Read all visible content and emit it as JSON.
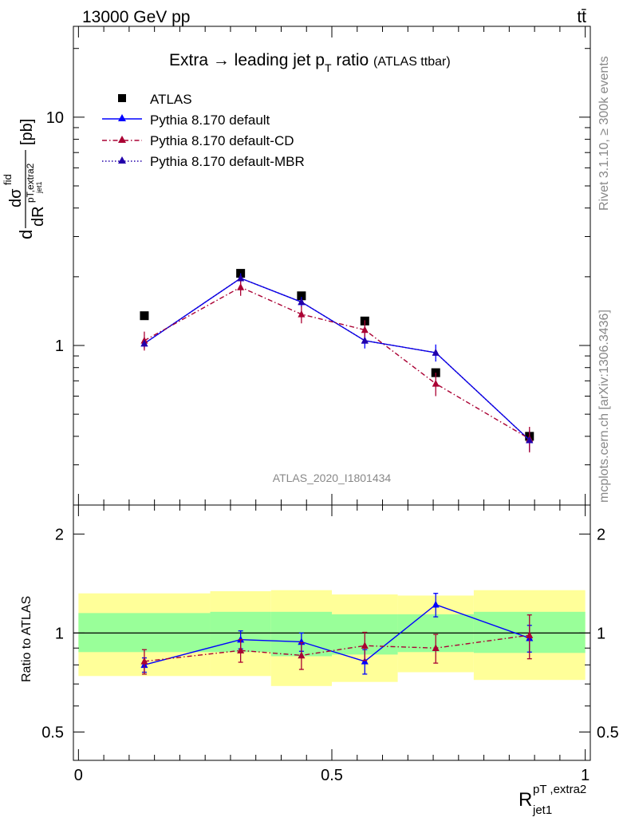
{
  "header": {
    "energy_label": "13000 GeV pp",
    "process_label": "tt̄",
    "rivet_label": "Rivet 3.1.10, ≥ 300k events",
    "mcplots_label": "mcplots.cern.ch [arXiv:1306.3436]",
    "analysis_label": "ATLAS_2020_I1801434"
  },
  "colors": {
    "atlas": "#000000",
    "default": "#0000ff",
    "default_cd": "#aa0033",
    "default_mbr": "#2200aa",
    "band_inner": "#99ff99",
    "band_outer": "#ffff99"
  },
  "chart_data": [
    {
      "type": "line",
      "panel": "main",
      "title": "Extra → leading jet pT ratio (ATLAS ttbar)",
      "title_parts": {
        "main": "Extra → leading jet p",
        "sub": "T",
        "rest": " ratio",
        "small": "(ATLAS ttbar)"
      },
      "ylabel": "dσ^fid / dR^{pT,extra2}_{jet1} [pb]",
      "ylabel_parts": {
        "d1": "d",
        "sigma": "dσ",
        "fid": "fid",
        "den": "dR",
        "sup": "pT,extra2",
        "sub": "jet1",
        "unit": "[pb]"
      },
      "y_scale": "log",
      "ylim": [
        0.2,
        25
      ],
      "xlim": [
        -0.01,
        1.01
      ],
      "y_ticks": [
        1,
        10
      ],
      "y_tick_labels": [
        "1",
        "10"
      ],
      "legend_position": "top-left",
      "series": [
        {
          "name": "ATLAS",
          "style": "data",
          "x": [
            0.13,
            0.32,
            0.44,
            0.565,
            0.705,
            0.89
          ],
          "y": [
            1.35,
            2.07,
            1.65,
            1.28,
            0.76,
            0.4
          ]
        },
        {
          "name": "Pythia 8.170 default",
          "style": "solid",
          "x": [
            0.13,
            0.32,
            0.44,
            0.565,
            0.705,
            0.89
          ],
          "y": [
            1.02,
            1.97,
            1.55,
            1.05,
            0.93,
            0.385
          ],
          "err": [
            0.05,
            0.1,
            0.08,
            0.08,
            0.08,
            0.04
          ]
        },
        {
          "name": "Pythia 8.170 default-CD",
          "style": "dashdot",
          "x": [
            0.13,
            0.32,
            0.44,
            0.565,
            0.705,
            0.89
          ],
          "y": [
            1.05,
            1.8,
            1.37,
            1.17,
            0.68,
            0.39
          ],
          "err": [
            0.1,
            0.15,
            0.12,
            0.12,
            0.08,
            0.05
          ]
        },
        {
          "name": "Pythia 8.170 default-MBR",
          "style": "dotted",
          "x": [
            0.13,
            0.32,
            0.44,
            0.565,
            0.705,
            0.89
          ],
          "y": [
            1.02,
            1.97,
            1.55,
            1.05,
            0.93,
            0.385
          ]
        }
      ]
    },
    {
      "type": "line",
      "panel": "ratio",
      "ylabel": "Ratio to ATLAS",
      "xlabel": "R^{pT,extra2}_{jet1}",
      "xlabel_parts": {
        "main": "R",
        "sup": "pT ,extra2",
        "sub": "jet1"
      },
      "y_scale": "log",
      "ylim": [
        0.41,
        2.45
      ],
      "xlim": [
        -0.01,
        1.01
      ],
      "x_ticks": [
        0,
        0.5,
        1
      ],
      "x_tick_labels": [
        "0",
        "0.5",
        "1"
      ],
      "y_ticks": [
        0.5,
        1,
        2
      ],
      "y_tick_labels": [
        "0.5",
        "1",
        "2"
      ],
      "bands": [
        {
          "x": [
            0.0,
            0.26
          ],
          "inner": [
            0.875,
            1.15
          ],
          "outer": [
            0.74,
            1.32
          ]
        },
        {
          "x": [
            0.26,
            0.38
          ],
          "inner": [
            0.875,
            1.16
          ],
          "outer": [
            0.74,
            1.34
          ]
        },
        {
          "x": [
            0.38,
            0.5
          ],
          "inner": [
            0.85,
            1.16
          ],
          "outer": [
            0.69,
            1.35
          ]
        },
        {
          "x": [
            0.5,
            0.63
          ],
          "inner": [
            0.86,
            1.14
          ],
          "outer": [
            0.71,
            1.31
          ]
        },
        {
          "x": [
            0.63,
            0.78
          ],
          "inner": [
            0.875,
            1.14
          ],
          "outer": [
            0.76,
            1.3
          ]
        },
        {
          "x": [
            0.78,
            1.0
          ],
          "inner": [
            0.87,
            1.16
          ],
          "outer": [
            0.72,
            1.35
          ]
        }
      ],
      "series": [
        {
          "name": "Pythia 8.170 default",
          "style": "solid",
          "x": [
            0.13,
            0.32,
            0.44,
            0.565,
            0.705,
            0.89
          ],
          "y": [
            0.8,
            0.955,
            0.94,
            0.82,
            1.22,
            0.965
          ],
          "err": [
            0.04,
            0.06,
            0.06,
            0.07,
            0.1,
            0.09
          ]
        },
        {
          "name": "Pythia 8.170 default-CD",
          "style": "dashdot",
          "x": [
            0.13,
            0.32,
            0.44,
            0.565,
            0.705,
            0.89
          ],
          "y": [
            0.82,
            0.885,
            0.855,
            0.915,
            0.9,
            0.985
          ],
          "err": [
            0.07,
            0.07,
            0.08,
            0.09,
            0.09,
            0.15
          ]
        }
      ]
    }
  ]
}
